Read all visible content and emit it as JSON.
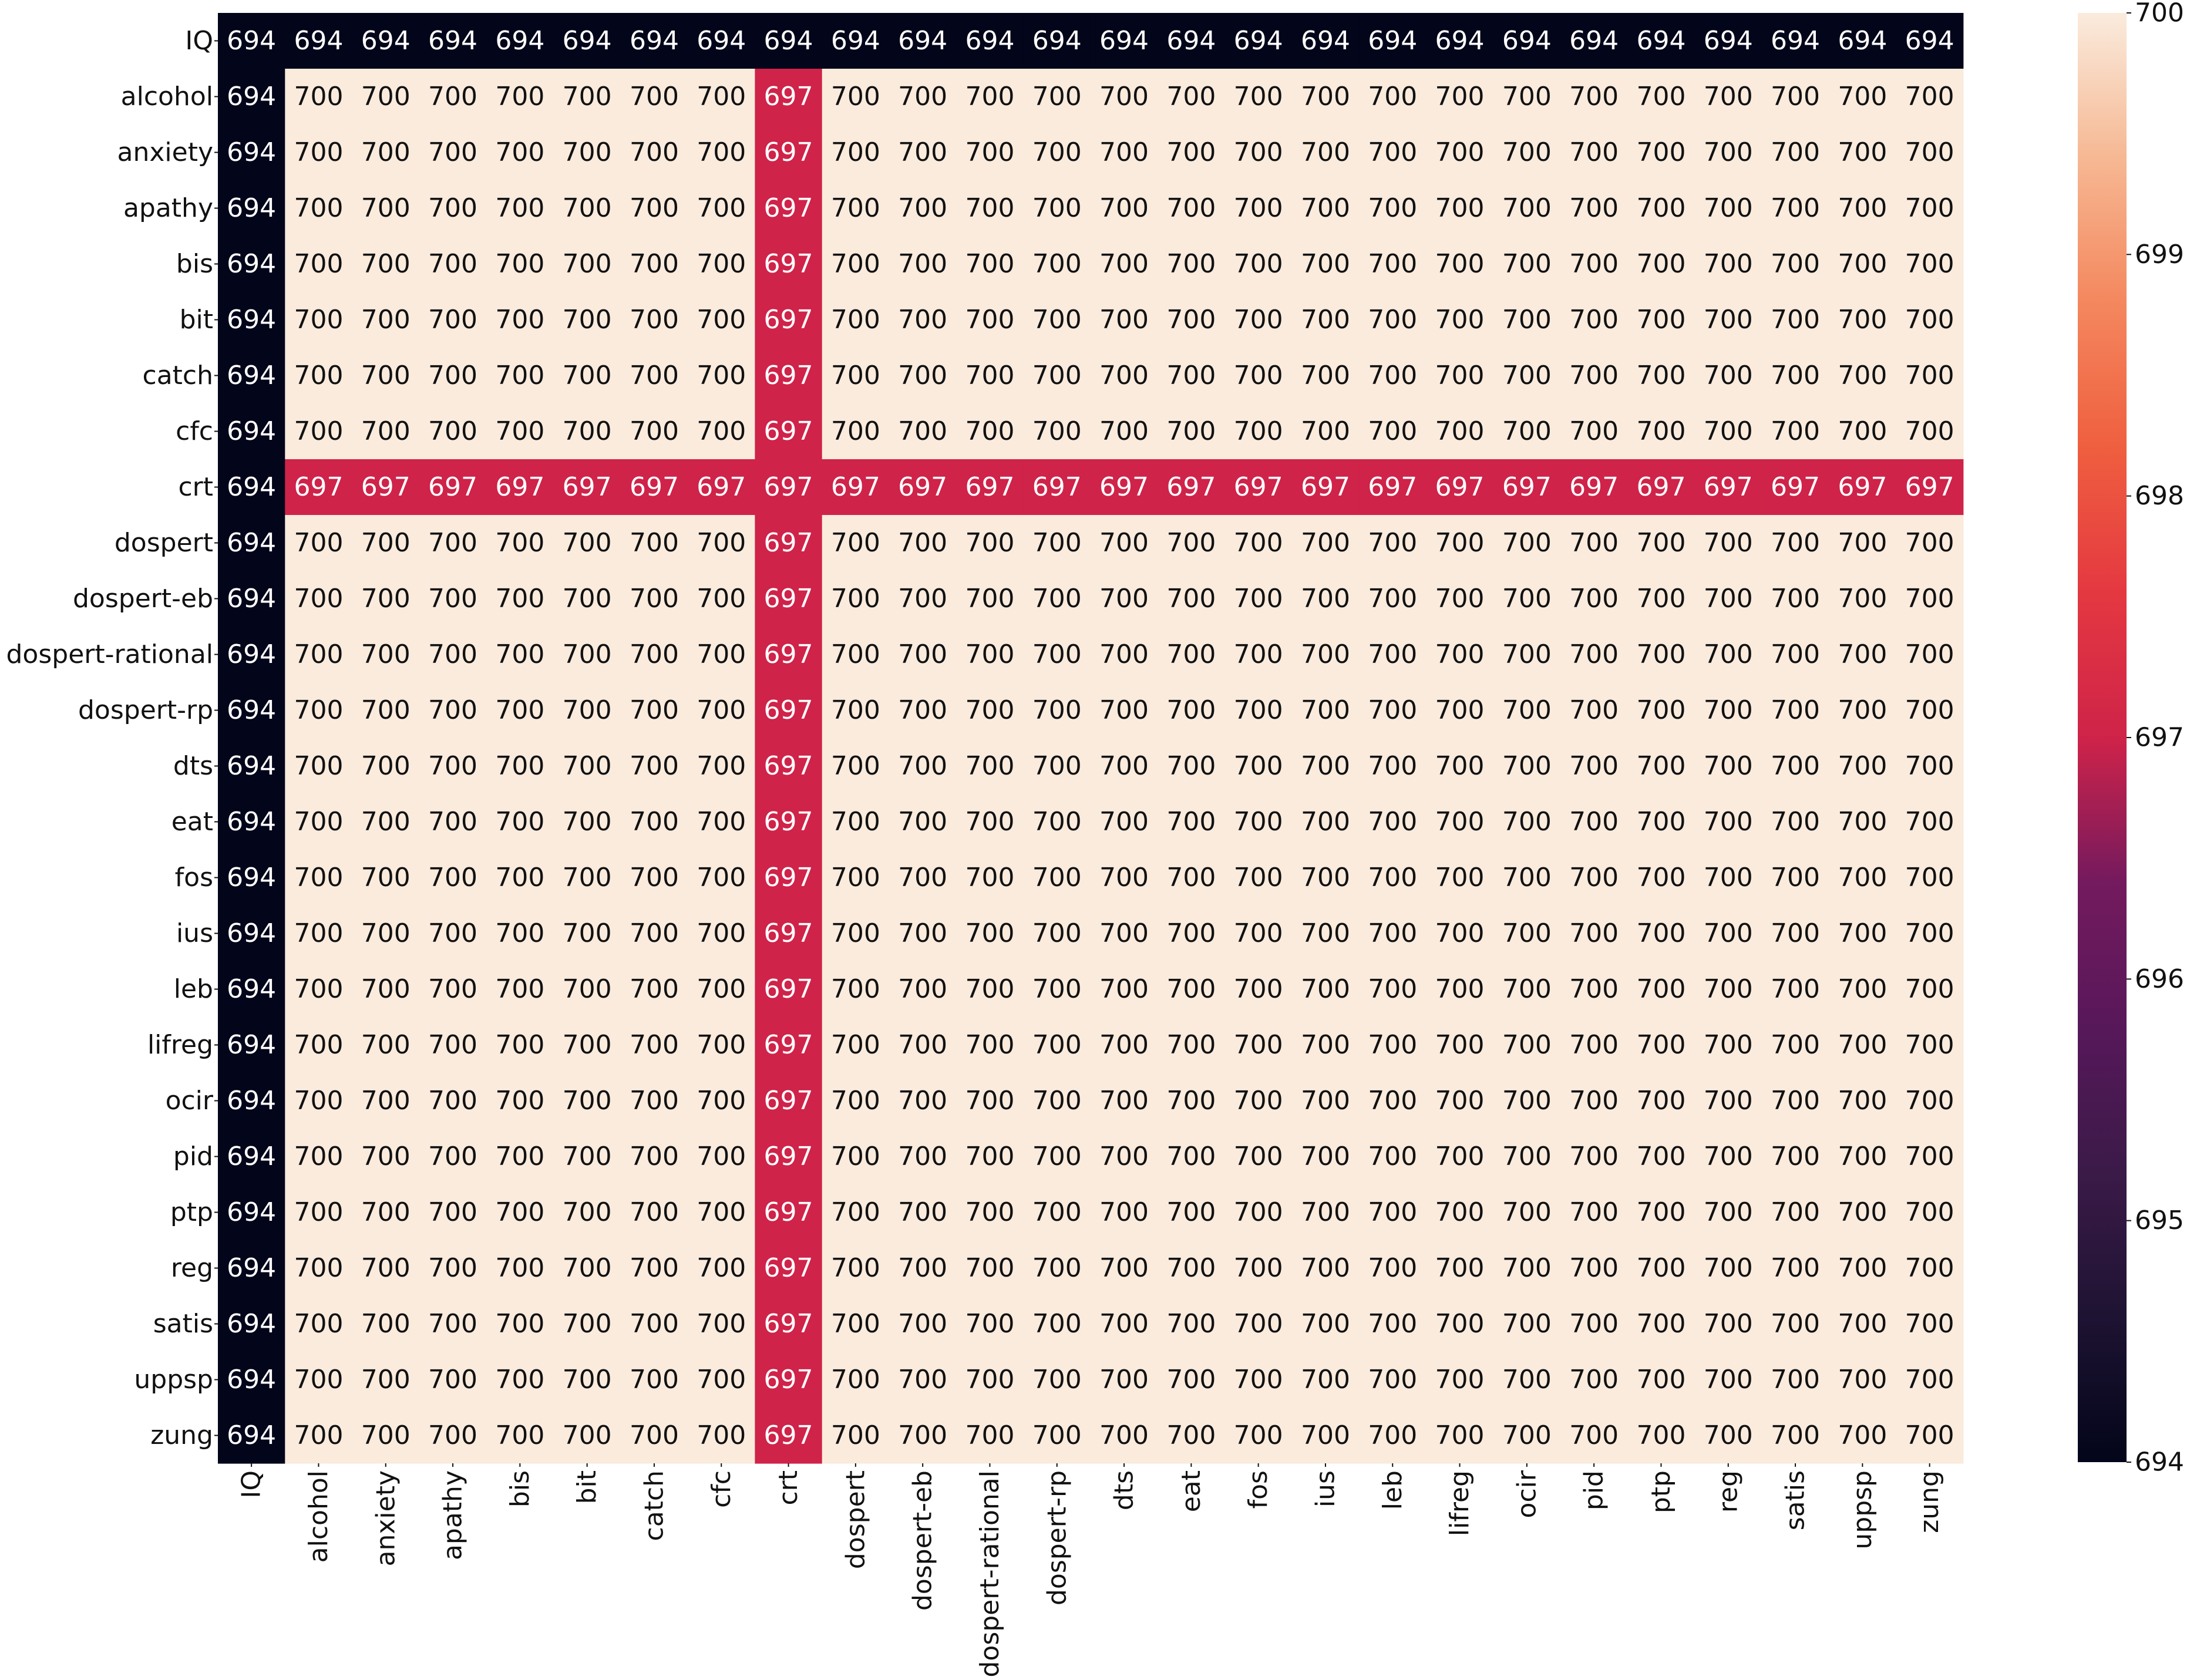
{
  "chart_data": {
    "type": "heatmap",
    "title": "",
    "xlabel": "",
    "ylabel": "",
    "x_labels": [
      "IQ",
      "alcohol",
      "anxiety",
      "apathy",
      "bis",
      "bit",
      "catch",
      "cfc",
      "crt",
      "dospert",
      "dospert-eb",
      "dospert-rational",
      "dospert-rp",
      "dts",
      "eat",
      "fos",
      "ius",
      "leb",
      "lifreg",
      "ocir",
      "pid",
      "ptp",
      "reg",
      "satis",
      "uppsp",
      "zung"
    ],
    "y_labels": [
      "IQ",
      "alcohol",
      "anxiety",
      "apathy",
      "bis",
      "bit",
      "catch",
      "cfc",
      "crt",
      "dospert",
      "dospert-eb",
      "dospert-rational",
      "dospert-rp",
      "dts",
      "eat",
      "fos",
      "ius",
      "leb",
      "lifreg",
      "ocir",
      "pid",
      "ptp",
      "reg",
      "satis",
      "uppsp",
      "zung"
    ],
    "values": [
      [
        694,
        694,
        694,
        694,
        694,
        694,
        694,
        694,
        694,
        694,
        694,
        694,
        694,
        694,
        694,
        694,
        694,
        694,
        694,
        694,
        694,
        694,
        694,
        694,
        694,
        694
      ],
      [
        694,
        700,
        700,
        700,
        700,
        700,
        700,
        700,
        697,
        700,
        700,
        700,
        700,
        700,
        700,
        700,
        700,
        700,
        700,
        700,
        700,
        700,
        700,
        700,
        700,
        700
      ],
      [
        694,
        700,
        700,
        700,
        700,
        700,
        700,
        700,
        697,
        700,
        700,
        700,
        700,
        700,
        700,
        700,
        700,
        700,
        700,
        700,
        700,
        700,
        700,
        700,
        700,
        700
      ],
      [
        694,
        700,
        700,
        700,
        700,
        700,
        700,
        700,
        697,
        700,
        700,
        700,
        700,
        700,
        700,
        700,
        700,
        700,
        700,
        700,
        700,
        700,
        700,
        700,
        700,
        700
      ],
      [
        694,
        700,
        700,
        700,
        700,
        700,
        700,
        700,
        697,
        700,
        700,
        700,
        700,
        700,
        700,
        700,
        700,
        700,
        700,
        700,
        700,
        700,
        700,
        700,
        700,
        700
      ],
      [
        694,
        700,
        700,
        700,
        700,
        700,
        700,
        700,
        697,
        700,
        700,
        700,
        700,
        700,
        700,
        700,
        700,
        700,
        700,
        700,
        700,
        700,
        700,
        700,
        700,
        700
      ],
      [
        694,
        700,
        700,
        700,
        700,
        700,
        700,
        700,
        697,
        700,
        700,
        700,
        700,
        700,
        700,
        700,
        700,
        700,
        700,
        700,
        700,
        700,
        700,
        700,
        700,
        700
      ],
      [
        694,
        700,
        700,
        700,
        700,
        700,
        700,
        700,
        697,
        700,
        700,
        700,
        700,
        700,
        700,
        700,
        700,
        700,
        700,
        700,
        700,
        700,
        700,
        700,
        700,
        700
      ],
      [
        694,
        697,
        697,
        697,
        697,
        697,
        697,
        697,
        697,
        697,
        697,
        697,
        697,
        697,
        697,
        697,
        697,
        697,
        697,
        697,
        697,
        697,
        697,
        697,
        697,
        697
      ],
      [
        694,
        700,
        700,
        700,
        700,
        700,
        700,
        700,
        697,
        700,
        700,
        700,
        700,
        700,
        700,
        700,
        700,
        700,
        700,
        700,
        700,
        700,
        700,
        700,
        700,
        700
      ],
      [
        694,
        700,
        700,
        700,
        700,
        700,
        700,
        700,
        697,
        700,
        700,
        700,
        700,
        700,
        700,
        700,
        700,
        700,
        700,
        700,
        700,
        700,
        700,
        700,
        700,
        700
      ],
      [
        694,
        700,
        700,
        700,
        700,
        700,
        700,
        700,
        697,
        700,
        700,
        700,
        700,
        700,
        700,
        700,
        700,
        700,
        700,
        700,
        700,
        700,
        700,
        700,
        700,
        700
      ],
      [
        694,
        700,
        700,
        700,
        700,
        700,
        700,
        700,
        697,
        700,
        700,
        700,
        700,
        700,
        700,
        700,
        700,
        700,
        700,
        700,
        700,
        700,
        700,
        700,
        700,
        700
      ],
      [
        694,
        700,
        700,
        700,
        700,
        700,
        700,
        700,
        697,
        700,
        700,
        700,
        700,
        700,
        700,
        700,
        700,
        700,
        700,
        700,
        700,
        700,
        700,
        700,
        700,
        700
      ],
      [
        694,
        700,
        700,
        700,
        700,
        700,
        700,
        700,
        697,
        700,
        700,
        700,
        700,
        700,
        700,
        700,
        700,
        700,
        700,
        700,
        700,
        700,
        700,
        700,
        700,
        700
      ],
      [
        694,
        700,
        700,
        700,
        700,
        700,
        700,
        700,
        697,
        700,
        700,
        700,
        700,
        700,
        700,
        700,
        700,
        700,
        700,
        700,
        700,
        700,
        700,
        700,
        700,
        700
      ],
      [
        694,
        700,
        700,
        700,
        700,
        700,
        700,
        700,
        697,
        700,
        700,
        700,
        700,
        700,
        700,
        700,
        700,
        700,
        700,
        700,
        700,
        700,
        700,
        700,
        700,
        700
      ],
      [
        694,
        700,
        700,
        700,
        700,
        700,
        700,
        700,
        697,
        700,
        700,
        700,
        700,
        700,
        700,
        700,
        700,
        700,
        700,
        700,
        700,
        700,
        700,
        700,
        700,
        700
      ],
      [
        694,
        700,
        700,
        700,
        700,
        700,
        700,
        700,
        697,
        700,
        700,
        700,
        700,
        700,
        700,
        700,
        700,
        700,
        700,
        700,
        700,
        700,
        700,
        700,
        700,
        700
      ],
      [
        694,
        700,
        700,
        700,
        700,
        700,
        700,
        700,
        697,
        700,
        700,
        700,
        700,
        700,
        700,
        700,
        700,
        700,
        700,
        700,
        700,
        700,
        700,
        700,
        700,
        700
      ],
      [
        694,
        700,
        700,
        700,
        700,
        700,
        700,
        700,
        697,
        700,
        700,
        700,
        700,
        700,
        700,
        700,
        700,
        700,
        700,
        700,
        700,
        700,
        700,
        700,
        700,
        700
      ],
      [
        694,
        700,
        700,
        700,
        700,
        700,
        700,
        700,
        697,
        700,
        700,
        700,
        700,
        700,
        700,
        700,
        700,
        700,
        700,
        700,
        700,
        700,
        700,
        700,
        700,
        700
      ],
      [
        694,
        700,
        700,
        700,
        700,
        700,
        700,
        700,
        697,
        700,
        700,
        700,
        700,
        700,
        700,
        700,
        700,
        700,
        700,
        700,
        700,
        700,
        700,
        700,
        700,
        700
      ],
      [
        694,
        700,
        700,
        700,
        700,
        700,
        700,
        700,
        697,
        700,
        700,
        700,
        700,
        700,
        700,
        700,
        700,
        700,
        700,
        700,
        700,
        700,
        700,
        700,
        700,
        700
      ],
      [
        694,
        700,
        700,
        700,
        700,
        700,
        700,
        700,
        697,
        700,
        700,
        700,
        700,
        700,
        700,
        700,
        700,
        700,
        700,
        700,
        700,
        700,
        700,
        700,
        700,
        700
      ],
      [
        694,
        700,
        700,
        700,
        700,
        700,
        700,
        700,
        697,
        700,
        700,
        700,
        700,
        700,
        700,
        700,
        700,
        700,
        700,
        700,
        700,
        700,
        700,
        700,
        700,
        700
      ]
    ],
    "vmin": 694,
    "vmax": 700,
    "colormap": "rocket",
    "colorbar_ticks": [
      694,
      695,
      696,
      697,
      698,
      699,
      700
    ],
    "colors": {
      "v694": "#03051a",
      "v697": "#cf2349",
      "v700": "#faebdd",
      "annotation_on_dark": "#ffffff"
    },
    "legend_position": "right",
    "grid": false
  }
}
